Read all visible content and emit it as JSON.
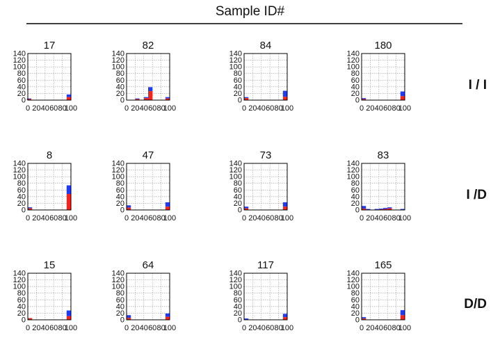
{
  "header": {
    "title": "Sample ID#"
  },
  "colors": {
    "blue": "#1f3cf5",
    "red": "#f2251c",
    "grid": "#9a9a9a",
    "axis": "#000000"
  },
  "chart_data": {
    "type": "bar",
    "stacked": true,
    "xlim": [
      0,
      100
    ],
    "ylim": [
      0,
      140
    ],
    "xticks": [
      "0",
      "20",
      "40",
      "60",
      "80",
      "100"
    ],
    "yticks": [
      "0",
      "20",
      "40",
      "60",
      "80",
      "100",
      "120",
      "140"
    ],
    "grid": true,
    "rows": [
      {
        "label": "I / I",
        "panels": [
          {
            "title": "17",
            "bins": [
              {
                "x": 3,
                "red": 3,
                "blue": 2
              },
              {
                "x": 95,
                "red": 9,
                "blue": 8
              }
            ]
          },
          {
            "title": "82",
            "bins": [
              {
                "x": 25,
                "red": 3,
                "blue": 2
              },
              {
                "x": 45,
                "red": 6,
                "blue": 3
              },
              {
                "x": 55,
                "red": 27,
                "blue": 12
              },
              {
                "x": 65,
                "red": 1,
                "blue": 0
              },
              {
                "x": 95,
                "red": 5,
                "blue": 4
              }
            ]
          },
          {
            "title": "84",
            "bins": [
              {
                "x": 5,
                "red": 6,
                "blue": 3
              },
              {
                "x": 95,
                "red": 10,
                "blue": 18
              }
            ]
          },
          {
            "title": "180",
            "bins": [
              {
                "x": 5,
                "red": 3,
                "blue": 3
              },
              {
                "x": 95,
                "red": 12,
                "blue": 14
              }
            ]
          }
        ]
      },
      {
        "label": "I /D",
        "panels": [
          {
            "title": "8",
            "bins": [
              {
                "x": 5,
                "red": 5,
                "blue": 3
              },
              {
                "x": 95,
                "red": 48,
                "blue": 26
              }
            ]
          },
          {
            "title": "47",
            "bins": [
              {
                "x": 5,
                "red": 7,
                "blue": 7
              },
              {
                "x": 95,
                "red": 10,
                "blue": 13
              }
            ]
          },
          {
            "title": "73",
            "bins": [
              {
                "x": 5,
                "red": 5,
                "blue": 5
              },
              {
                "x": 95,
                "red": 10,
                "blue": 13
              }
            ]
          },
          {
            "title": "83",
            "bins": [
              {
                "x": 5,
                "red": 4,
                "blue": 8
              },
              {
                "x": 15,
                "red": 1,
                "blue": 2
              },
              {
                "x": 35,
                "red": 1,
                "blue": 2
              },
              {
                "x": 45,
                "red": 2,
                "blue": 2
              },
              {
                "x": 55,
                "red": 3,
                "blue": 3
              },
              {
                "x": 65,
                "red": 5,
                "blue": 3
              },
              {
                "x": 95,
                "red": 1,
                "blue": 2
              }
            ]
          }
        ]
      },
      {
        "label": "D/D",
        "panels": [
          {
            "title": "15",
            "bins": [
              {
                "x": 5,
                "red": 5,
                "blue": 0
              },
              {
                "x": 95,
                "red": 11,
                "blue": 17
              }
            ]
          },
          {
            "title": "64",
            "bins": [
              {
                "x": 5,
                "red": 6,
                "blue": 8
              },
              {
                "x": 95,
                "red": 9,
                "blue": 10
              }
            ]
          },
          {
            "title": "117",
            "bins": [
              {
                "x": 5,
                "red": 1,
                "blue": 3
              },
              {
                "x": 95,
                "red": 8,
                "blue": 10
              }
            ]
          },
          {
            "title": "165",
            "bins": [
              {
                "x": 5,
                "red": 4,
                "blue": 4
              },
              {
                "x": 95,
                "red": 14,
                "blue": 15
              }
            ]
          }
        ]
      }
    ]
  }
}
